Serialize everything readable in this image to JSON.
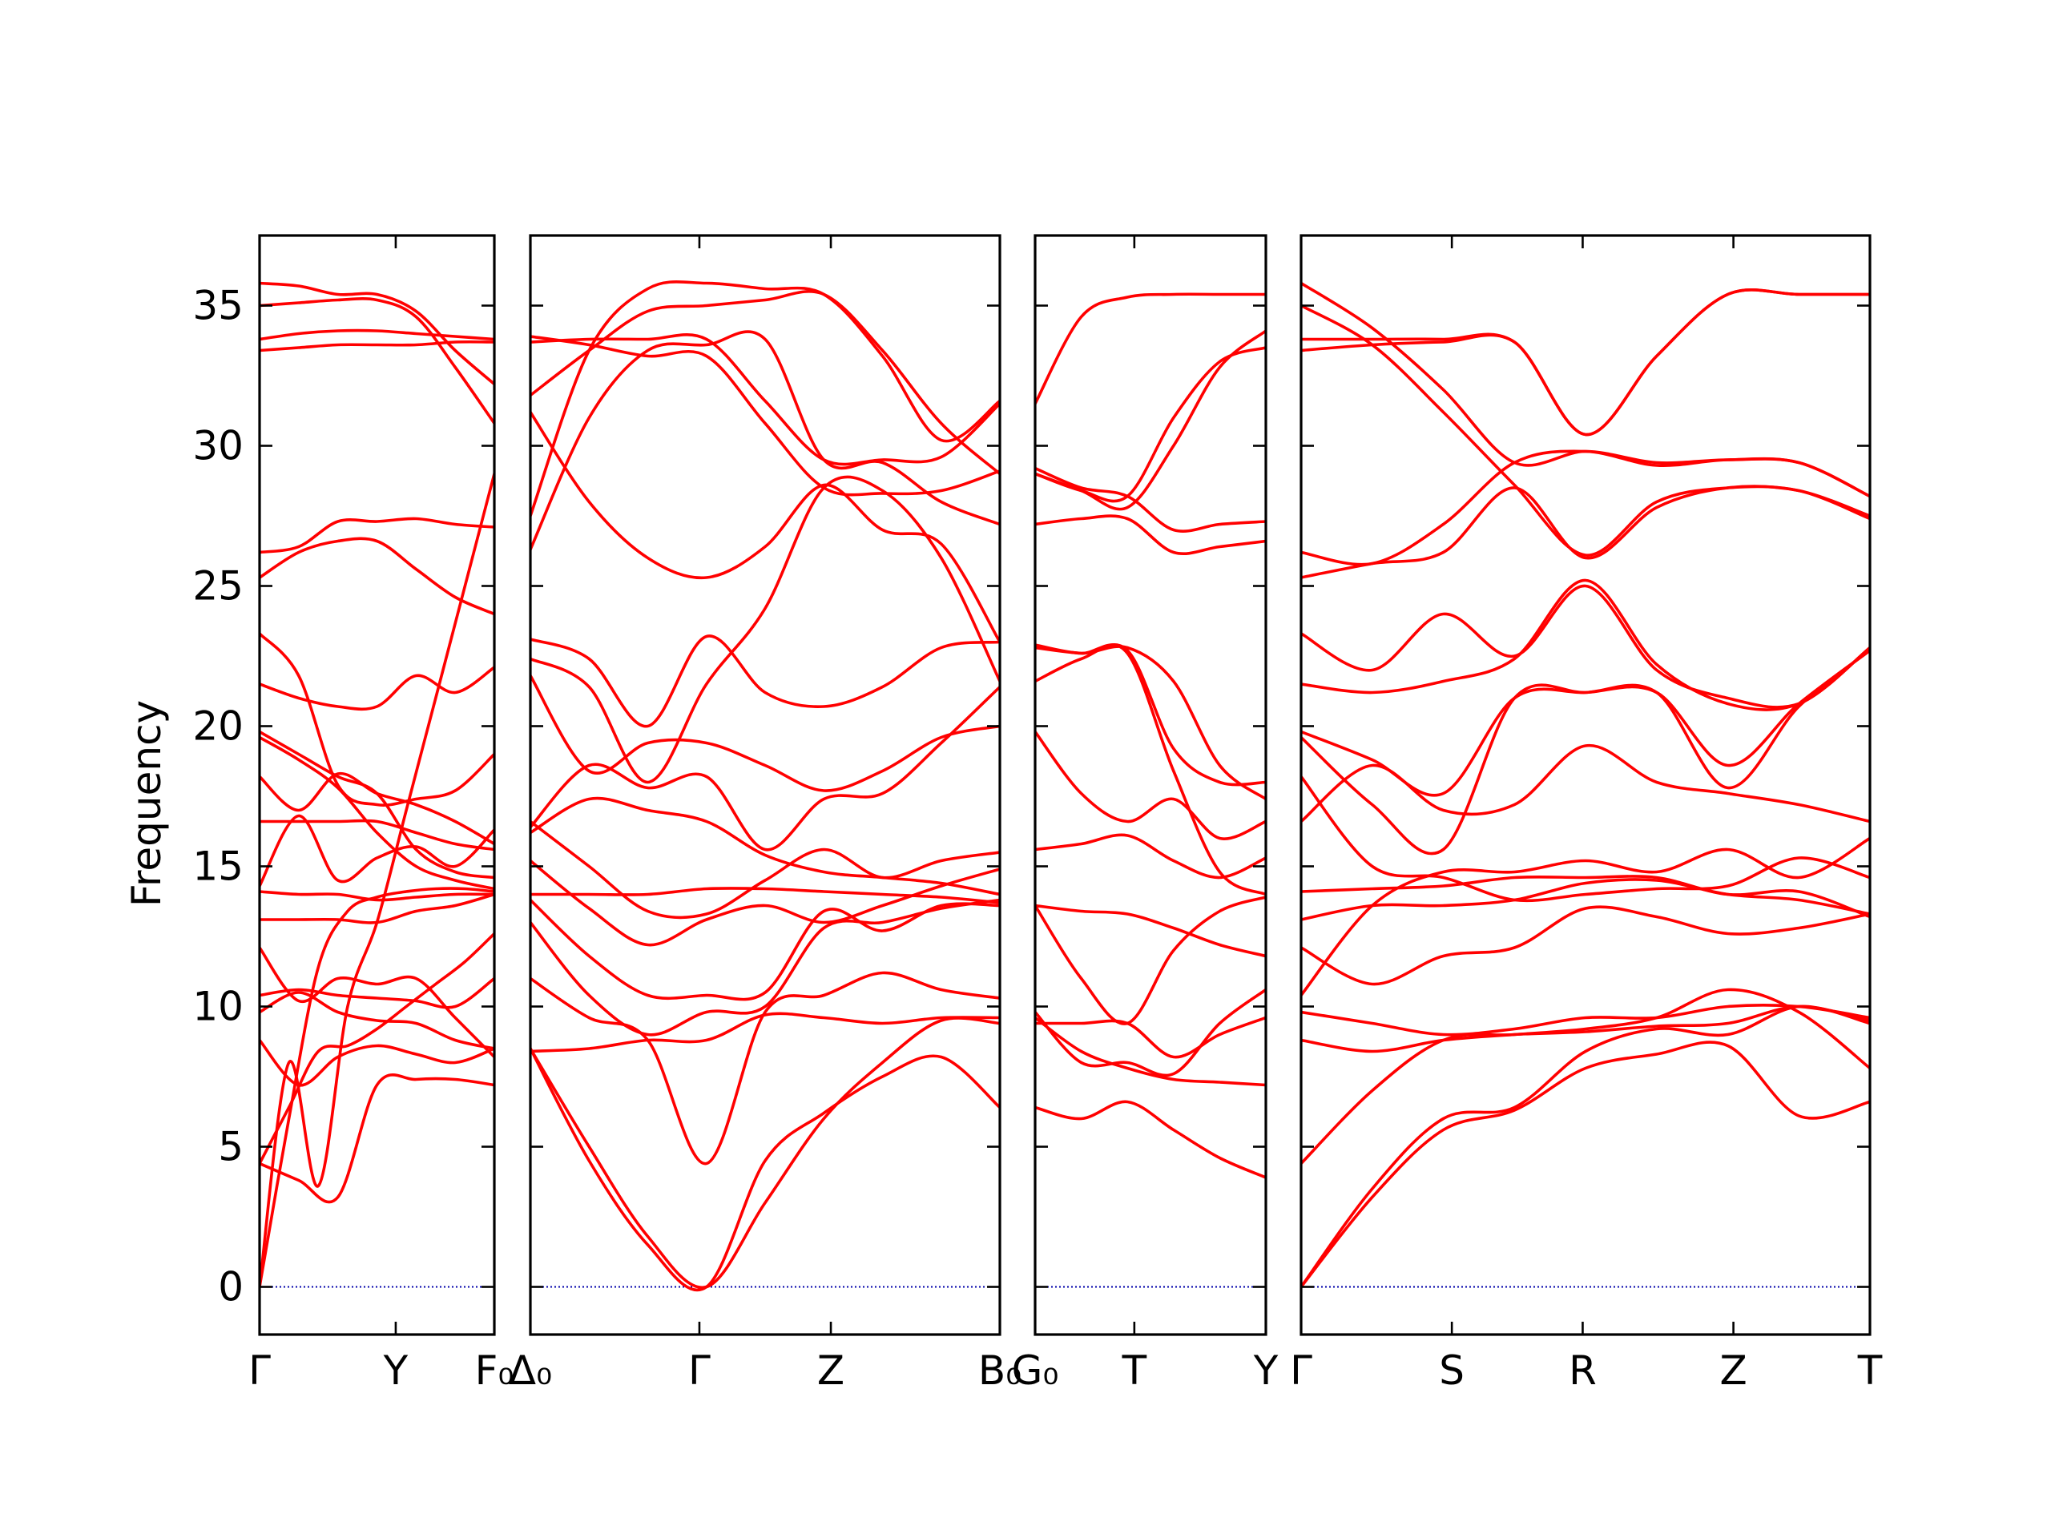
{
  "chart_data": {
    "type": "line",
    "title": "",
    "ylabel": "Frequency",
    "ylim": [
      -1.7,
      37.5
    ],
    "yticks": [
      0,
      5,
      10,
      15,
      20,
      25,
      30,
      35
    ],
    "grid": false,
    "legend": "none",
    "colors": {
      "band": "#ff0000",
      "zero_line": "#0000aa",
      "axes": "#000000"
    },
    "panels": [
      {
        "tick_labels": [
          "Γ",
          "Y",
          "F₀"
        ],
        "tick_positions": [
          0,
          0.58,
          1
        ],
        "bands": [
          [
            0,
            8,
            3.6,
            10,
            13,
            17,
            21,
            25,
            29
          ],
          [
            0,
            6,
            11.4,
            13.4,
            13.9,
            14.1,
            14.2,
            14.2,
            14.1
          ],
          [
            4.4,
            6.4,
            8.4,
            8.6,
            9.2,
            10.0,
            10.8,
            11.6,
            12.6
          ],
          [
            4.4,
            3.8,
            3.2,
            7.2,
            7.4,
            7.4,
            7.2
          ],
          [
            8.8,
            7.2,
            8.2,
            8.6,
            8.3,
            8.0,
            8.5
          ],
          [
            9.8,
            10.5,
            9.8,
            9.5,
            9.4,
            8.8,
            8.5
          ],
          [
            10.4,
            10.6,
            10.4,
            10.3,
            10.2,
            10.0,
            11.0
          ],
          [
            12.1,
            10.2,
            11.0,
            10.8,
            11.0,
            9.6,
            8.2
          ],
          [
            13.1,
            13.1,
            13.1,
            13.0,
            13.4,
            13.6,
            14.0
          ],
          [
            14.1,
            14.0,
            14.0,
            13.8,
            13.9,
            14.0,
            14.0
          ],
          [
            14.3,
            16.8,
            14.5,
            15.3,
            15.7,
            15.0,
            16.3
          ],
          [
            16.6,
            16.6,
            16.6,
            16.6,
            16.2,
            15.8,
            15.6
          ],
          [
            18.2,
            17.0,
            18.3,
            17.6,
            17.2,
            16.6,
            15.8
          ],
          [
            19.6,
            18.8,
            17.8,
            16.2,
            15.0,
            14.5,
            14.2
          ],
          [
            19.8,
            19.0,
            18.2,
            17.6,
            15.6,
            14.8,
            14.6
          ],
          [
            21.5,
            21.0,
            20.7,
            20.7,
            21.8,
            21.2,
            22.1
          ],
          [
            23.3,
            21.8,
            17.9,
            17.2,
            17.4,
            17.7,
            19.0
          ],
          [
            25.3,
            26.2,
            26.6,
            26.6,
            25.6,
            24.6,
            24.0
          ],
          [
            26.2,
            26.4,
            27.3,
            27.3,
            27.4,
            27.2,
            27.1
          ],
          [
            33.4,
            33.5,
            33.6,
            33.6,
            33.6,
            33.7,
            33.7
          ],
          [
            33.8,
            34.0,
            34.1,
            34.1,
            34.0,
            33.9,
            33.8
          ],
          [
            35.0,
            35.1,
            35.2,
            35.2,
            34.6,
            32.8,
            30.8
          ],
          [
            35.8,
            35.7,
            35.4,
            35.4,
            34.8,
            33.4,
            32.2
          ]
        ]
      },
      {
        "tick_labels": [
          "Δ₀",
          "Γ",
          "Z",
          "B₀"
        ],
        "tick_positions": [
          0,
          0.36,
          0.64,
          1
        ],
        "bands": [
          [
            8.5,
            5.0,
            1.8,
            0,
            3.0,
            6.0,
            8.0,
            9.5,
            9.4
          ],
          [
            8.5,
            4.5,
            1.5,
            0,
            4.5,
            6.2,
            7.5,
            8.2,
            6.4
          ],
          [
            11.0,
            9.6,
            8.8,
            4.4,
            9.8,
            10.4,
            11.2,
            10.6,
            10.3
          ],
          [
            8.4,
            8.5,
            8.8,
            8.8,
            9.7,
            9.6,
            9.4,
            9.6,
            9.6
          ],
          [
            13.0,
            10.4,
            9.0,
            9.8,
            10.0,
            12.8,
            13.0,
            13.5,
            13.8
          ],
          [
            13.8,
            11.8,
            10.4,
            10.4,
            10.5,
            13.4,
            12.7,
            13.6,
            13.6
          ],
          [
            14.0,
            14.0,
            14.0,
            14.2,
            14.2,
            14.1,
            14.0,
            13.9,
            13.7
          ],
          [
            15.2,
            13.5,
            12.2,
            13.1,
            13.6,
            13.0,
            13.6,
            14.3,
            14.9
          ],
          [
            16.6,
            15.0,
            13.4,
            13.3,
            14.5,
            15.6,
            14.6,
            15.2,
            15.5
          ],
          [
            16.2,
            17.4,
            17.0,
            16.6,
            15.4,
            14.8,
            14.6,
            14.4,
            14.0
          ],
          [
            16.4,
            18.6,
            17.8,
            18.2,
            15.6,
            17.4,
            17.6,
            19.4,
            21.4
          ],
          [
            21.8,
            18.4,
            19.4,
            19.4,
            18.6,
            17.7,
            18.4,
            19.6,
            20.0
          ],
          [
            23.1,
            22.4,
            20.0,
            23.2,
            21.2,
            20.7,
            21.4,
            22.8,
            23.0
          ],
          [
            22.4,
            21.4,
            18.0,
            21.5,
            24.2,
            28.5,
            28.4,
            26.0,
            21.6
          ],
          [
            26.3,
            31.0,
            33.4,
            33.6,
            33.8,
            29.5,
            29.4,
            28.0,
            27.2
          ],
          [
            31.2,
            28.0,
            26.0,
            25.3,
            26.4,
            28.6,
            27.0,
            26.5,
            23.0
          ],
          [
            33.7,
            33.8,
            33.8,
            33.8,
            31.6,
            29.5,
            29.5,
            29.6,
            31.5
          ],
          [
            33.9,
            33.6,
            33.2,
            33.2,
            30.8,
            28.5,
            28.3,
            28.4,
            29.1
          ],
          [
            31.8,
            33.4,
            34.8,
            35.0,
            35.2,
            35.4,
            33.4,
            30.8,
            29.0
          ],
          [
            27.5,
            33.4,
            35.6,
            35.8,
            35.6,
            35.4,
            33.2,
            30.2,
            31.6
          ]
        ]
      },
      {
        "tick_labels": [
          "G₀",
          "T",
          "Y"
        ],
        "tick_positions": [
          0,
          0.43,
          1
        ],
        "bands": [
          [
            6.4,
            6.0,
            6.6,
            5.6,
            4.6,
            3.9
          ],
          [
            9.6,
            8.4,
            7.8,
            7.4,
            7.3,
            7.2
          ],
          [
            9.4,
            9.4,
            9.4,
            8.2,
            9.0,
            9.6
          ],
          [
            9.8,
            8.0,
            8.0,
            7.6,
            9.4,
            10.6
          ],
          [
            13.6,
            13.4,
            13.3,
            12.8,
            12.2,
            11.8
          ],
          [
            13.6,
            11.0,
            9.4,
            12.0,
            13.4,
            13.9
          ],
          [
            15.6,
            15.8,
            16.1,
            15.2,
            14.6,
            15.3
          ],
          [
            19.8,
            17.6,
            16.6,
            17.4,
            16.0,
            16.6
          ],
          [
            21.6,
            22.4,
            22.7,
            19.2,
            18.0,
            18.0
          ],
          [
            22.9,
            22.6,
            22.8,
            21.6,
            18.6,
            17.4
          ],
          [
            22.8,
            22.6,
            22.6,
            18.4,
            14.8,
            14.0
          ],
          [
            27.2,
            27.4,
            27.4,
            26.2,
            26.4,
            26.6
          ],
          [
            29.2,
            28.5,
            28.2,
            27.0,
            27.2,
            27.3
          ],
          [
            31.5,
            34.6,
            35.3,
            35.4,
            35.4,
            35.4
          ],
          [
            29.0,
            28.4,
            27.8,
            30.0,
            32.8,
            34.1
          ],
          [
            29.0,
            28.4,
            28.2,
            31.0,
            33.0,
            33.5
          ]
        ]
      },
      {
        "tick_labels": [
          "Γ",
          "S",
          "R",
          "Z",
          "T"
        ],
        "tick_positions": [
          0,
          0.265,
          0.495,
          0.76,
          1
        ],
        "bands": [
          [
            0,
            3.2,
            5.6,
            6.3,
            7.8,
            8.3,
            8.6,
            6.1,
            6.6
          ],
          [
            0,
            3.5,
            6.0,
            6.4,
            8.4,
            9.2,
            9.0,
            10.0,
            9.4
          ],
          [
            4.4,
            7.0,
            8.8,
            9.0,
            9.2,
            9.6,
            10.6,
            9.8,
            7.8
          ],
          [
            8.8,
            8.4,
            8.8,
            9.0,
            9.1,
            9.3,
            9.4,
            10.0,
            9.5
          ],
          [
            9.8,
            9.4,
            9.0,
            9.2,
            9.6,
            9.6,
            10.0,
            10.0,
            9.6
          ],
          [
            10.4,
            13.6,
            14.8,
            14.8,
            15.2,
            14.8,
            15.6,
            14.6,
            16.0
          ],
          [
            12.1,
            10.8,
            11.8,
            12.1,
            13.5,
            13.2,
            12.6,
            12.8,
            13.3
          ],
          [
            13.1,
            13.6,
            13.6,
            13.8,
            14.4,
            14.5,
            14.0,
            13.8,
            13.3
          ],
          [
            14.1,
            14.2,
            14.3,
            14.6,
            14.6,
            14.6,
            14.0,
            14.1,
            13.2
          ],
          [
            16.6,
            18.6,
            17.0,
            17.2,
            19.3,
            18.0,
            17.6,
            17.2,
            16.6
          ],
          [
            18.2,
            15.0,
            14.6,
            13.8,
            14.0,
            14.2,
            14.3,
            15.3,
            14.6
          ],
          [
            19.6,
            17.2,
            15.6,
            21.0,
            21.2,
            21.2,
            18.6,
            20.8,
            22.7
          ],
          [
            19.8,
            18.8,
            17.6,
            21.0,
            21.2,
            21.2,
            17.8,
            20.7,
            22.7
          ],
          [
            21.5,
            21.2,
            21.6,
            22.4,
            25.2,
            22.2,
            20.8,
            20.8,
            22.8
          ],
          [
            23.3,
            22.0,
            24.0,
            22.5,
            25.0,
            22.0,
            21.0,
            20.8,
            22.8
          ],
          [
            25.3,
            25.8,
            26.2,
            28.5,
            26.0,
            27.8,
            28.5,
            28.4,
            27.5
          ],
          [
            26.2,
            25.8,
            27.2,
            29.4,
            29.8,
            29.3,
            29.5,
            29.4,
            28.2
          ],
          [
            33.4,
            33.6,
            33.7,
            33.7,
            30.4,
            33.2,
            35.4,
            35.4,
            35.4
          ],
          [
            33.8,
            33.8,
            33.8,
            33.7,
            30.4,
            33.2,
            35.4,
            35.4,
            35.4
          ],
          [
            35.0,
            33.6,
            31.2,
            28.6,
            26.1,
            28.0,
            28.5,
            28.4,
            27.4
          ],
          [
            35.8,
            34.2,
            32.0,
            29.4,
            29.8,
            29.4,
            29.5,
            29.4,
            28.2
          ]
        ]
      }
    ]
  }
}
